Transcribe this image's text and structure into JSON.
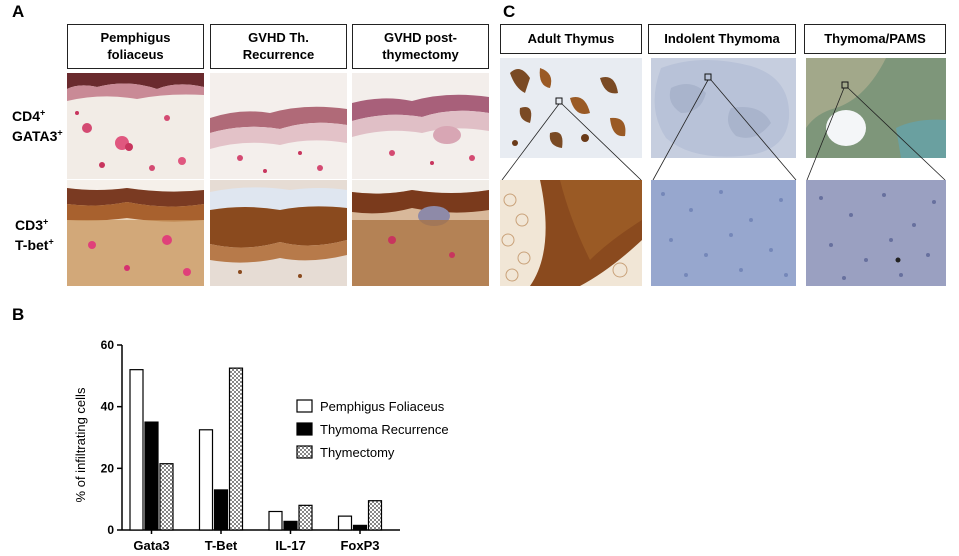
{
  "panels": {
    "a": "A",
    "b": "B",
    "c": "C"
  },
  "panel_a": {
    "columns": [
      "Pemphigus\nfoliaceus",
      "GVHD Th.\nRecurrence",
      "GVHD post-\nthymectomy"
    ],
    "rows": [
      {
        "main1": "CD4",
        "sup1": "+",
        "main2": "GATA3",
        "sup2": "+"
      },
      {
        "main1": "CD3",
        "sup1": "+",
        "main2": "T-bet",
        "sup2": "+"
      }
    ]
  },
  "panel_c": {
    "columns": [
      "Adult Thymus",
      "Indolent Thymoma",
      "Thymoma/PAMS"
    ]
  },
  "colors": {
    "ihc_red": "#c8355e",
    "ihc_brown": "#8a4a1e",
    "thymus_brown": "#9a5a25",
    "thymoma_blue": "#8a9cc8",
    "pams_green": "#6e8c68"
  },
  "chart_data": {
    "type": "bar",
    "ylabel": "% of infiltrating cells",
    "ylim": [
      0,
      60
    ],
    "yticks": [
      0,
      20,
      40,
      60
    ],
    "categories": [
      "Gata3",
      "T-Bet",
      "IL-17",
      "FoxP3"
    ],
    "legend_position": "right",
    "series": [
      {
        "name": "Pemphigus Foliaceus",
        "style": "white",
        "values": [
          52,
          32.5,
          6,
          4.5
        ]
      },
      {
        "name": "Thymoma Recurrence",
        "style": "black",
        "values": [
          35,
          13,
          2.8,
          1.5
        ]
      },
      {
        "name": "Thymectomy",
        "style": "checkered",
        "values": [
          21.5,
          52.5,
          8,
          9.5
        ]
      }
    ]
  }
}
